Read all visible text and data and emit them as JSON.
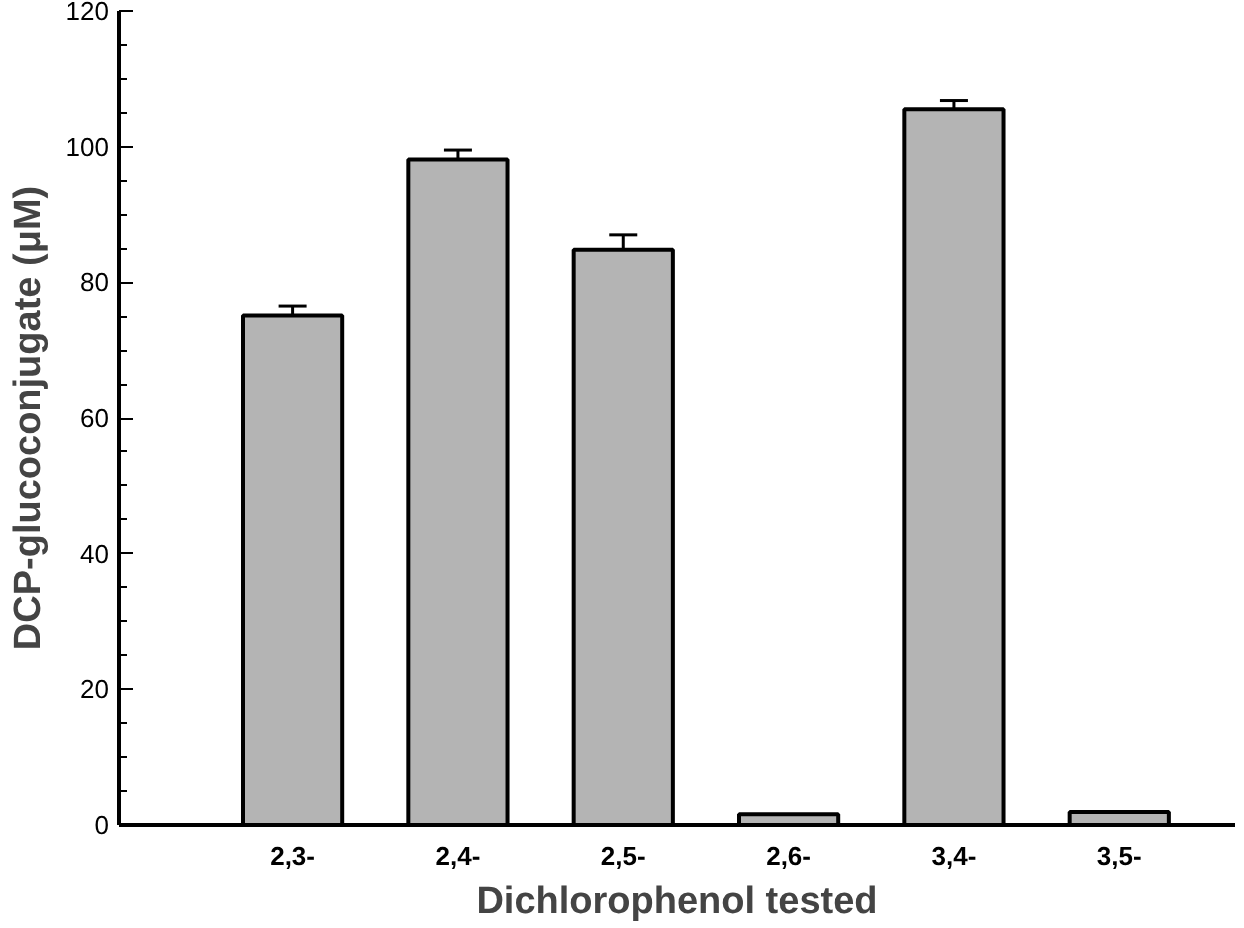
{
  "chart_data": {
    "type": "bar",
    "xlabel": "Dichlorophenol tested",
    "ylabel": "DCP-glucoconjugate (μM)",
    "categories": [
      "2,3-",
      "2,4-",
      "2,5-",
      "2,6-",
      "3,4-",
      "3,5-"
    ],
    "values": [
      75.1,
      98.1,
      84.8,
      1.6,
      105.5,
      1.9
    ],
    "errors": [
      1.4,
      1.4,
      2.2,
      null,
      1.3,
      null
    ],
    "color": "#b4b4b4",
    "ylim": [
      0,
      120
    ],
    "yticks": [
      0,
      20,
      40,
      60,
      80,
      100,
      120
    ],
    "grid": false
  }
}
